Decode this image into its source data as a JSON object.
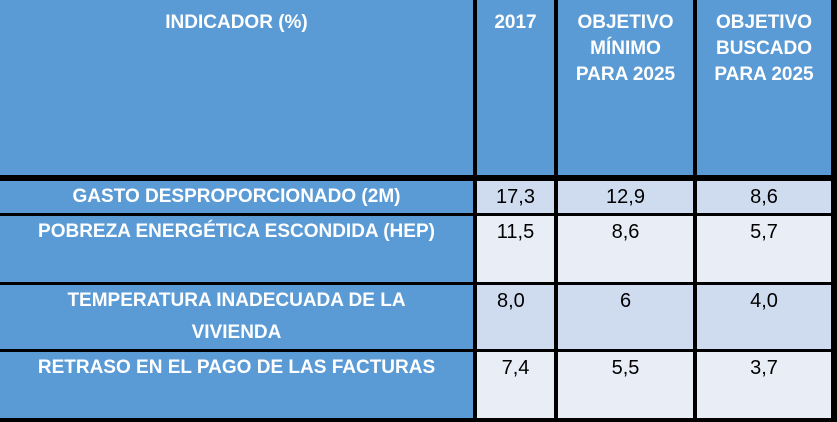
{
  "table": {
    "headers": {
      "indicator": "INDICADOR (%)",
      "year": "2017",
      "min_goal": [
        "OBJETIVO",
        "MÍNIMO",
        "PARA 2025"
      ],
      "target_goal": [
        "OBJETIVO",
        "BUSCADO",
        "PARA 2025"
      ]
    },
    "rows": [
      {
        "label": "GASTO DESPROPORCIONADO (2M)",
        "v2017": "17,3",
        "min": "12,9",
        "target": "8,6"
      },
      {
        "label": "POBREZA ENERGÉTICA ESCONDIDA (HEP)",
        "v2017": "11,5",
        "min": "8,6",
        "target": "5,7"
      },
      {
        "label": [
          "TEMPERATURA INADECUADA DE LA",
          "VIVIENDA"
        ],
        "v2017": "8,0",
        "min": "6",
        "target": "4,0"
      },
      {
        "label": "RETRASO EN EL PAGO DE LAS FACTURAS",
        "v2017": "7,4",
        "min": "5,5",
        "target": "3,7"
      }
    ]
  }
}
